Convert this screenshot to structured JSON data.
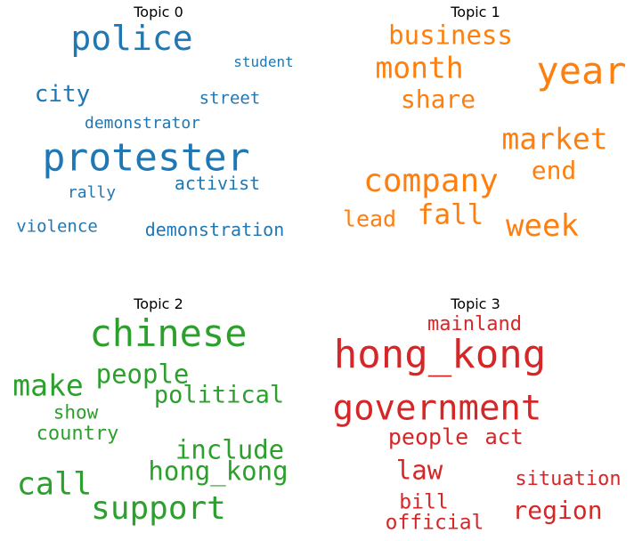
{
  "topics": [
    {
      "title": "Topic 0",
      "color": "#1f77b4",
      "words": [
        "police",
        "student",
        "city",
        "street",
        "demonstrator",
        "protester",
        "activist",
        "rally",
        "violence",
        "demonstration"
      ]
    },
    {
      "title": "Topic 1",
      "color": "#ff7f0e",
      "words": [
        "business",
        "month",
        "year",
        "share",
        "market",
        "end",
        "company",
        "fall",
        "lead",
        "week"
      ]
    },
    {
      "title": "Topic 2",
      "color": "#2ca02c",
      "words": [
        "chinese",
        "people",
        "make",
        "political",
        "show",
        "country",
        "include",
        "hong_kong",
        "call",
        "support"
      ]
    },
    {
      "title": "Topic 3",
      "color": "#d62728",
      "words": [
        "mainland",
        "hong_kong",
        "government",
        "people",
        "act",
        "law",
        "situation",
        "bill",
        "region",
        "official"
      ]
    }
  ]
}
